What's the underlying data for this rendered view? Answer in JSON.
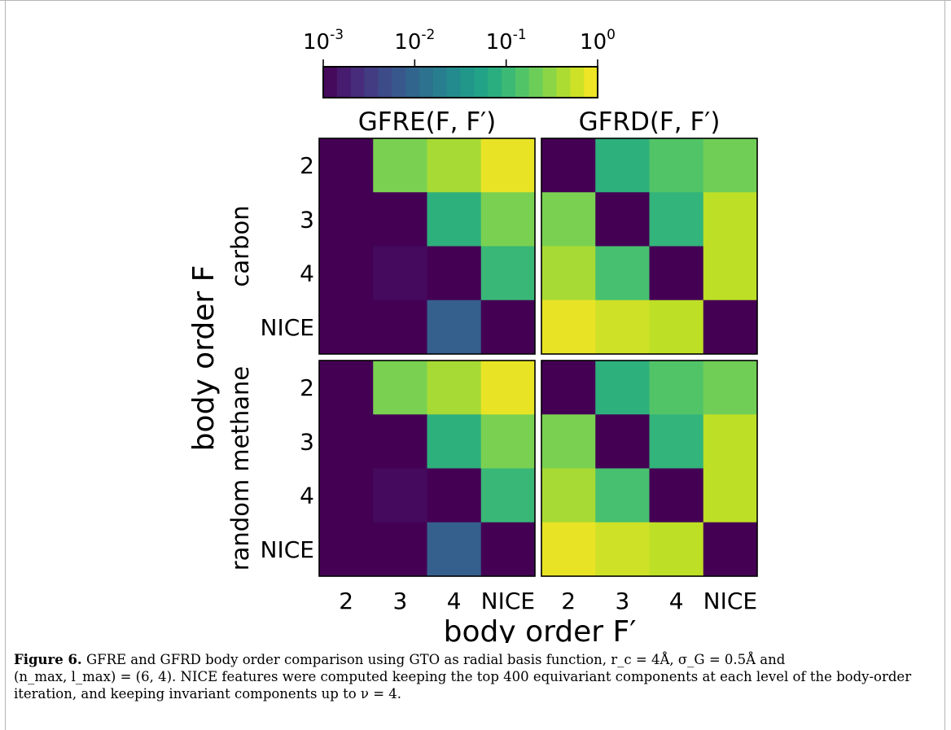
{
  "chart_data": {
    "type": "heatmap",
    "colorbar": {
      "scale": "log",
      "range": [
        0.001,
        1
      ],
      "colormap": "viridis",
      "tick_labels": [
        {
          "base": "10",
          "exp": "-3"
        },
        {
          "base": "10",
          "exp": "-2"
        },
        {
          "base": "10",
          "exp": "-1"
        },
        {
          "base": "10",
          "exp": "0"
        }
      ]
    },
    "column_titles": [
      "GFRE(F, F′)",
      "GFRD(F, F′)"
    ],
    "row_groups": [
      "carbon",
      "random methane"
    ],
    "categories": [
      "2",
      "3",
      "4",
      "NICE"
    ],
    "xlabel": "body order F′",
    "ylabel": "body order F",
    "panels": [
      {
        "row_group": "carbon",
        "metric": "GFRE",
        "values": [
          [
            0.001,
            0.25,
            0.4,
            0.8
          ],
          [
            0.001,
            0.001,
            0.08,
            0.25
          ],
          [
            0.001,
            0.0012,
            0.001,
            0.1
          ],
          [
            0.001,
            0.001,
            0.008,
            0.001
          ]
        ]
      },
      {
        "row_group": "carbon",
        "metric": "GFRD",
        "values": [
          [
            0.001,
            0.08,
            0.15,
            0.22
          ],
          [
            0.25,
            0.001,
            0.09,
            0.5
          ],
          [
            0.4,
            0.13,
            0.001,
            0.5
          ],
          [
            0.8,
            0.6,
            0.5,
            0.001
          ]
        ]
      },
      {
        "row_group": "random methane",
        "metric": "GFRE",
        "values": [
          [
            0.001,
            0.25,
            0.4,
            0.8
          ],
          [
            0.001,
            0.001,
            0.08,
            0.25
          ],
          [
            0.001,
            0.0012,
            0.001,
            0.1
          ],
          [
            0.001,
            0.001,
            0.008,
            0.001
          ]
        ]
      },
      {
        "row_group": "random methane",
        "metric": "GFRD",
        "values": [
          [
            0.001,
            0.08,
            0.15,
            0.22
          ],
          [
            0.25,
            0.001,
            0.09,
            0.5
          ],
          [
            0.4,
            0.13,
            0.001,
            0.5
          ],
          [
            0.8,
            0.6,
            0.5,
            0.001
          ]
        ]
      }
    ]
  },
  "caption": {
    "label": "Figure 6.",
    "text_line1": "GFRE and GFRD body order comparison using GTO as radial basis function, r_c = 4Å, σ_G = 0.5Å and",
    "text_line2": "(n_max, l_max) = (6, 4). NICE features were computed keeping the top 400 equivariant components at each level of the body-order",
    "text_line3": "iteration, and keeping invariant components up to ν = 4."
  }
}
